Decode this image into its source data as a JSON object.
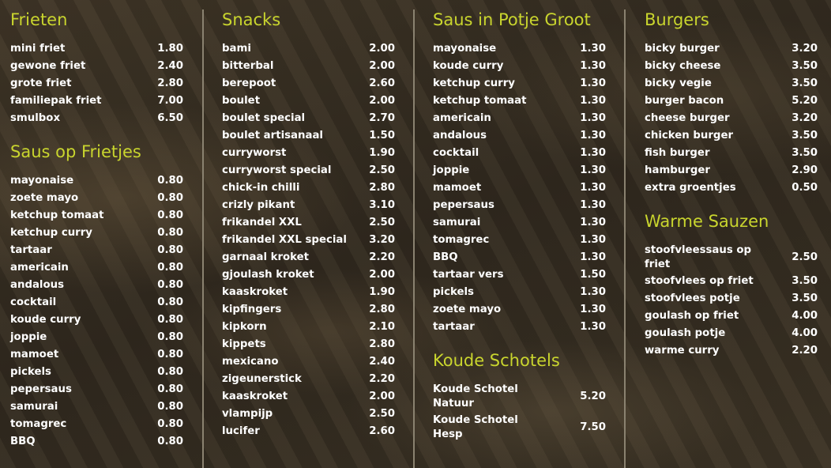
{
  "columns": [
    {
      "sections": [
        {
          "title": "Frieten",
          "items": [
            [
              "mini friet",
              "1.80"
            ],
            [
              "gewone friet",
              "2.40"
            ],
            [
              "grote friet",
              "2.80"
            ],
            [
              "familiepak friet",
              "7.00"
            ],
            [
              "smulbox",
              "6.50"
            ]
          ]
        },
        {
          "title": "Saus op Frietjes",
          "items": [
            [
              "mayonaise",
              "0.80"
            ],
            [
              "zoete mayo",
              "0.80"
            ],
            [
              "ketchup tomaat",
              "0.80"
            ],
            [
              "ketchup curry",
              "0.80"
            ],
            [
              "tartaar",
              "0.80"
            ],
            [
              "americain",
              "0.80"
            ],
            [
              "andalous",
              "0.80"
            ],
            [
              "cocktail",
              "0.80"
            ],
            [
              "koude curry",
              "0.80"
            ],
            [
              "joppie",
              "0.80"
            ],
            [
              "mamoet",
              "0.80"
            ],
            [
              "pickels",
              "0.80"
            ],
            [
              "pepersaus",
              "0.80"
            ],
            [
              "samurai",
              "0.80"
            ],
            [
              "tomagrec",
              "0.80"
            ],
            [
              "BBQ",
              "0.80"
            ]
          ]
        }
      ]
    },
    {
      "sections": [
        {
          "title": "Snacks",
          "items": [
            [
              "bami",
              "2.00"
            ],
            [
              "bitterbal",
              "2.00"
            ],
            [
              "berepoot",
              "2.60"
            ],
            [
              "boulet",
              "2.00"
            ],
            [
              "boulet special",
              "2.70"
            ],
            [
              "boulet artisanaal",
              "1.50"
            ],
            [
              "curryworst",
              "1.90"
            ],
            [
              "curryworst special",
              "2.50"
            ],
            [
              "chick-in chilli",
              "2.80"
            ],
            [
              "crizly pikant",
              "3.10"
            ],
            [
              "frikandel XXL",
              "2.50"
            ],
            [
              "frikandel XXL special",
              "3.20"
            ],
            [
              "garnaal kroket",
              "2.20"
            ],
            [
              "gjoulash kroket",
              "2.00"
            ],
            [
              "kaaskroket",
              "1.90"
            ],
            [
              "kipfingers",
              "2.80"
            ],
            [
              "kipkorn",
              "2.10"
            ],
            [
              "kippets",
              "2.80"
            ],
            [
              "mexicano",
              "2.40"
            ],
            [
              "zigeunerstick",
              "2.20"
            ],
            [
              "kaaskroket",
              "2.00"
            ],
            [
              "vlampijp",
              "2.50"
            ],
            [
              "lucifer",
              "2.60"
            ]
          ]
        }
      ]
    },
    {
      "sections": [
        {
          "title": "Saus in Potje Groot",
          "items": [
            [
              "mayonaise",
              "1.30"
            ],
            [
              "koude curry",
              "1.30"
            ],
            [
              "ketchup curry",
              "1.30"
            ],
            [
              "ketchup tomaat",
              "1.30"
            ],
            [
              "americain",
              "1.30"
            ],
            [
              "andalous",
              "1.30"
            ],
            [
              "cocktail",
              "1.30"
            ],
            [
              "joppie",
              "1.30"
            ],
            [
              "mamoet",
              "1.30"
            ],
            [
              "pepersaus",
              "1.30"
            ],
            [
              "samurai",
              "1.30"
            ],
            [
              "tomagrec",
              "1.30"
            ],
            [
              "BBQ",
              "1.30"
            ],
            [
              "tartaar vers",
              "1.50"
            ],
            [
              "pickels",
              "1.30"
            ],
            [
              "zoete mayo",
              "1.30"
            ],
            [
              "tartaar",
              "1.30"
            ]
          ]
        },
        {
          "title": "Koude Schotels",
          "items": [
            [
              "Koude Schotel Natuur",
              "5.20"
            ],
            [
              "Koude Schotel Hesp",
              "7.50"
            ]
          ]
        }
      ]
    },
    {
      "sections": [
        {
          "title": "Burgers",
          "items": [
            [
              "bicky burger",
              "3.20"
            ],
            [
              "bicky cheese",
              "3.50"
            ],
            [
              "bicky vegie",
              "3.50"
            ],
            [
              "burger bacon",
              "5.20"
            ],
            [
              "cheese burger",
              "3.20"
            ],
            [
              "chicken burger",
              "3.50"
            ],
            [
              "fish burger",
              "3.50"
            ],
            [
              "hamburger",
              "2.90"
            ],
            [
              "extra groentjes",
              "0.50"
            ]
          ]
        },
        {
          "title": "Warme Sauzen",
          "items": [
            [
              "stoofvleessaus op friet",
              "2.50"
            ],
            [
              "stoofvlees op friet",
              "3.50"
            ],
            [
              "stoofvlees potje",
              "3.50"
            ],
            [
              "goulash op friet",
              "4.00"
            ],
            [
              "goulash potje",
              "4.00"
            ],
            [
              "warme curry",
              "2.20"
            ]
          ]
        }
      ]
    }
  ],
  "colors": {
    "heading": "#c9d52e",
    "text": "#ffffff",
    "divider": "#8a8270"
  }
}
